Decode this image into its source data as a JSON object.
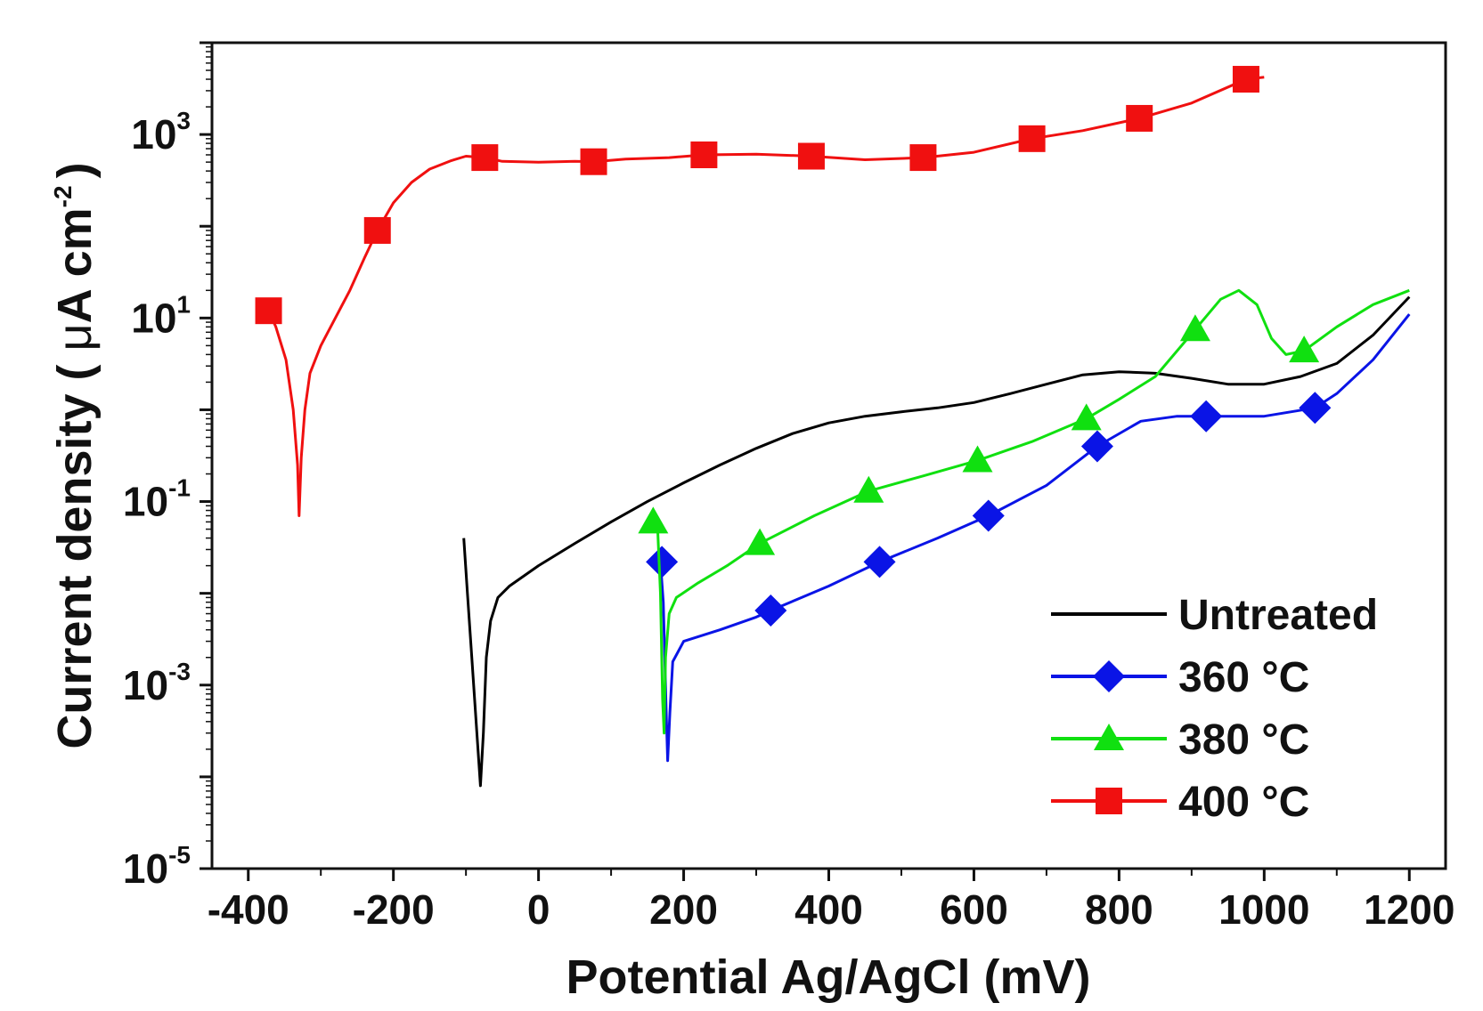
{
  "chart_data": {
    "type": "line",
    "title": "",
    "xlabel": "Potential Ag/AgCl (mV)",
    "ylabel": {
      "main": "Current density ( ",
      "mu": "μ",
      "unit": "A cm",
      "exp": "-2",
      "close": ")"
    },
    "xlim": [
      -450,
      1250
    ],
    "ylim_log10": [
      -5,
      4
    ],
    "x_ticks": [
      -400,
      -200,
      0,
      200,
      400,
      600,
      800,
      1000,
      1200
    ],
    "x_tick_labels": [
      "-400",
      "-200",
      "0",
      "200",
      "400",
      "600",
      "800",
      "1000",
      "1200"
    ],
    "y_ticks": [
      {
        "exp": -5,
        "base": "10",
        "sup": "-5"
      },
      {
        "exp": -3,
        "base": "10",
        "sup": "-3"
      },
      {
        "exp": -1,
        "base": "10",
        "sup": "-1"
      },
      {
        "exp": 1,
        "base": "10",
        "sup": "1"
      },
      {
        "exp": 3,
        "base": "10",
        "sup": "3"
      }
    ],
    "y_scale": "log",
    "legend_position": "bottom-right",
    "series": [
      {
        "name": "Untreated",
        "color": "#000000",
        "marker": "none",
        "points": [
          [
            -103,
            0.04
          ],
          [
            -98,
            0.01
          ],
          [
            -92,
            0.002
          ],
          [
            -85,
            0.0003
          ],
          [
            -80,
            8e-05
          ],
          [
            -76,
            0.0003
          ],
          [
            -72,
            0.002
          ],
          [
            -66,
            0.005
          ],
          [
            -56,
            0.009
          ],
          [
            -40,
            0.012
          ],
          [
            0,
            0.02
          ],
          [
            50,
            0.035
          ],
          [
            100,
            0.06
          ],
          [
            150,
            0.1
          ],
          [
            200,
            0.16
          ],
          [
            250,
            0.25
          ],
          [
            300,
            0.38
          ],
          [
            350,
            0.55
          ],
          [
            400,
            0.72
          ],
          [
            450,
            0.85
          ],
          [
            500,
            0.95
          ],
          [
            550,
            1.05
          ],
          [
            600,
            1.2
          ],
          [
            650,
            1.5
          ],
          [
            700,
            1.9
          ],
          [
            750,
            2.4
          ],
          [
            800,
            2.6
          ],
          [
            850,
            2.5
          ],
          [
            900,
            2.2
          ],
          [
            950,
            1.9
          ],
          [
            1000,
            1.9
          ],
          [
            1050,
            2.3
          ],
          [
            1100,
            3.2
          ],
          [
            1150,
            6.5
          ],
          [
            1200,
            17
          ]
        ]
      },
      {
        "name": "360 °C",
        "color": "#0a14e6",
        "marker": "diamond",
        "points": [
          [
            153,
            0.022
          ],
          [
            168,
            0.022
          ],
          [
            172,
            0.008
          ],
          [
            176,
            0.0005
          ],
          [
            178,
            0.00015
          ],
          [
            181,
            0.0005
          ],
          [
            185,
            0.0018
          ],
          [
            200,
            0.003
          ],
          [
            250,
            0.004
          ],
          [
            300,
            0.0055
          ],
          [
            320,
            0.0065
          ],
          [
            400,
            0.012
          ],
          [
            470,
            0.022
          ],
          [
            550,
            0.04
          ],
          [
            620,
            0.07
          ],
          [
            700,
            0.15
          ],
          [
            770,
            0.4
          ],
          [
            830,
            0.75
          ],
          [
            880,
            0.85
          ],
          [
            920,
            0.85
          ],
          [
            1000,
            0.85
          ],
          [
            1070,
            1.05
          ],
          [
            1100,
            1.5
          ],
          [
            1150,
            3.5
          ],
          [
            1200,
            11
          ]
        ],
        "markers": [
          [
            170,
            0.022
          ],
          [
            320,
            0.0065
          ],
          [
            470,
            0.022
          ],
          [
            620,
            0.07
          ],
          [
            770,
            0.4
          ],
          [
            920,
            0.85
          ],
          [
            1070,
            1.05
          ]
        ]
      },
      {
        "name": "380 °C",
        "color": "#10e010",
        "marker": "triangle",
        "points": [
          [
            158,
            0.06
          ],
          [
            164,
            0.055
          ],
          [
            168,
            0.01
          ],
          [
            171,
            0.0007
          ],
          [
            173,
            0.0003
          ],
          [
            175,
            0.002
          ],
          [
            180,
            0.006
          ],
          [
            190,
            0.009
          ],
          [
            220,
            0.013
          ],
          [
            260,
            0.02
          ],
          [
            305,
            0.035
          ],
          [
            380,
            0.07
          ],
          [
            455,
            0.13
          ],
          [
            530,
            0.19
          ],
          [
            605,
            0.28
          ],
          [
            680,
            0.45
          ],
          [
            755,
            0.8
          ],
          [
            800,
            1.3
          ],
          [
            850,
            2.3
          ],
          [
            905,
            7.5
          ],
          [
            940,
            16
          ],
          [
            965,
            20
          ],
          [
            990,
            14
          ],
          [
            1010,
            6
          ],
          [
            1030,
            4
          ],
          [
            1055,
            4.4
          ],
          [
            1100,
            8
          ],
          [
            1150,
            14
          ],
          [
            1200,
            20
          ]
        ],
        "markers": [
          [
            158,
            0.06
          ],
          [
            305,
            0.035
          ],
          [
            455,
            0.13
          ],
          [
            605,
            0.28
          ],
          [
            755,
            0.8
          ],
          [
            905,
            7.5
          ],
          [
            1055,
            4.4
          ]
        ]
      },
      {
        "name": "400 °C",
        "color": "#f01010",
        "marker": "square",
        "points": [
          [
            -372,
            12
          ],
          [
            -362,
            8
          ],
          [
            -348,
            3.5
          ],
          [
            -338,
            1
          ],
          [
            -332,
            0.25
          ],
          [
            -330,
            0.07
          ],
          [
            -327,
            0.3
          ],
          [
            -322,
            1
          ],
          [
            -315,
            2.5
          ],
          [
            -300,
            5
          ],
          [
            -280,
            10
          ],
          [
            -260,
            20
          ],
          [
            -240,
            45
          ],
          [
            -222,
            90
          ],
          [
            -200,
            180
          ],
          [
            -175,
            300
          ],
          [
            -150,
            420
          ],
          [
            -120,
            520
          ],
          [
            -100,
            580
          ],
          [
            -74,
            560
          ],
          [
            -50,
            510
          ],
          [
            0,
            500
          ],
          [
            50,
            510
          ],
          [
            76,
            505
          ],
          [
            120,
            540
          ],
          [
            180,
            560
          ],
          [
            228,
            600
          ],
          [
            300,
            610
          ],
          [
            376,
            580
          ],
          [
            450,
            530
          ],
          [
            530,
            560
          ],
          [
            600,
            640
          ],
          [
            680,
            900
          ],
          [
            750,
            1100
          ],
          [
            828,
            1500
          ],
          [
            900,
            2200
          ],
          [
            975,
            4000
          ],
          [
            1000,
            4200
          ]
        ],
        "markers": [
          [
            -372,
            12
          ],
          [
            -222,
            90
          ],
          [
            -74,
            560
          ],
          [
            76,
            505
          ],
          [
            228,
            600
          ],
          [
            376,
            580
          ],
          [
            530,
            560
          ],
          [
            680,
            900
          ],
          [
            828,
            1500
          ],
          [
            975,
            4000
          ]
        ]
      }
    ]
  }
}
